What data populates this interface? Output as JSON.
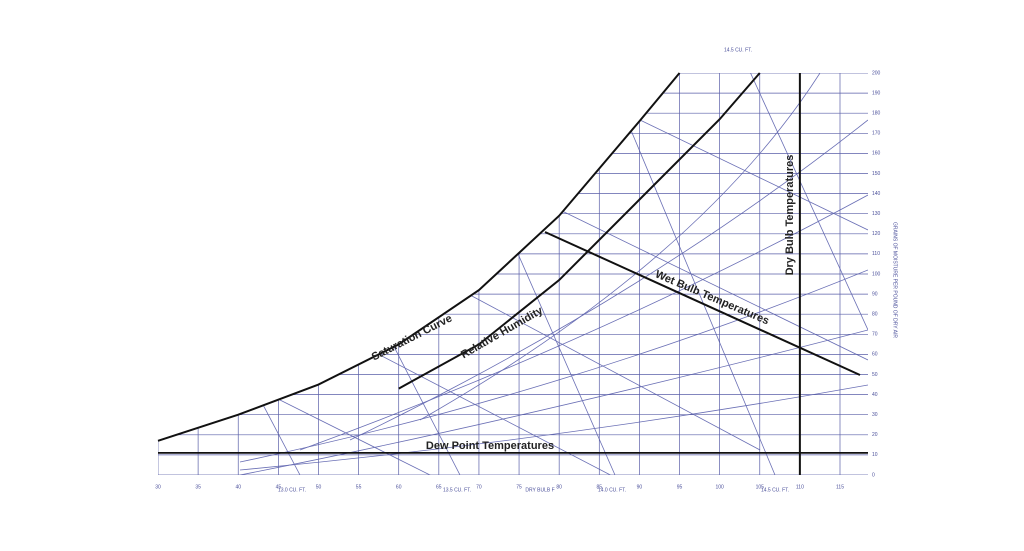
{
  "chart_data": {
    "type": "psychrometric",
    "x_label": "DRY BULB F",
    "y_label": "GRAINS OF MOISTURE PER POUND OF DRY AIR",
    "xlim": [
      30,
      115
    ],
    "xticks": [
      30,
      35,
      40,
      45,
      50,
      55,
      60,
      65,
      70,
      75,
      80,
      85,
      90,
      95,
      100,
      105,
      110,
      115
    ],
    "ylim": [
      0,
      200
    ],
    "yticks": [
      0,
      10,
      20,
      30,
      40,
      50,
      60,
      70,
      80,
      90,
      100,
      110,
      120,
      130,
      140,
      150,
      160,
      170,
      180,
      190,
      200
    ],
    "grid": true,
    "color": "#5a5fa8",
    "series": [
      {
        "name": "Saturation Curve",
        "color": "#111111",
        "x": [
          30,
          40,
          50,
          60,
          70,
          80,
          90,
          95
        ],
        "values": [
          17,
          30,
          45,
          65,
          92,
          129,
          176,
          200
        ]
      },
      {
        "name": "Relative Humidity",
        "color": "#111111",
        "x": [
          60,
          70,
          80,
          90,
          100,
          105
        ],
        "values": [
          43,
          65,
          97,
          137,
          177,
          200
        ]
      }
    ],
    "dew_point": {
      "label": "Dew Point Temperatures",
      "value": 11
    },
    "dry_bulb": {
      "label": "Dry Bulb Temperatures",
      "value": 110
    },
    "wet_bulb": {
      "label": "Wet Bulb Temperatures"
    },
    "volume_labels": [
      "13.0 CU. FT.",
      "13.5 CU. FT.",
      "14.0 CU. FT.",
      "14.5 CU. FT.",
      "14.5 CU. FT."
    ]
  }
}
